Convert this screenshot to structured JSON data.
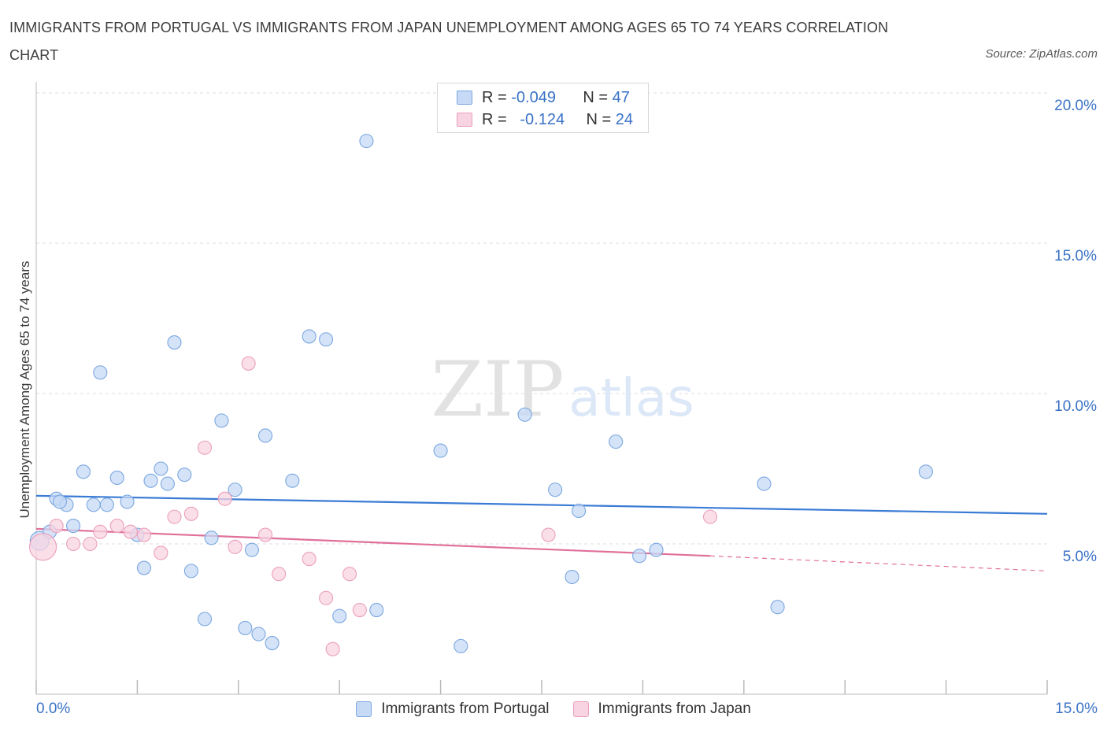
{
  "chart_data": {
    "type": "scatter",
    "title": "IMMIGRANTS FROM PORTUGAL VS IMMIGRANTS FROM JAPAN UNEMPLOYMENT AMONG AGES 65 TO 74 YEARS CORRELATION CHART",
    "source": "Source: ZipAtlas.com",
    "ylabel": "Unemployment Among Ages 65 to 74 years",
    "xlabel": "",
    "xlim": [
      0,
      15
    ],
    "ylim": [
      0,
      20
    ],
    "x_tick_labels": [
      "0.0%",
      "15.0%"
    ],
    "y_ticks": [
      {
        "value": 5,
        "label": "5.0%"
      },
      {
        "value": 10,
        "label": "10.0%"
      },
      {
        "value": 15,
        "label": "15.0%"
      },
      {
        "value": 20,
        "label": "20.0%"
      }
    ],
    "watermark": {
      "zip": "ZIP",
      "atlas": "atlas"
    },
    "legend": {
      "r_label": "R =",
      "n_label": "N =",
      "entries": [
        {
          "name": "Immigrants from Portugal",
          "r": "-0.049",
          "n": "47"
        },
        {
          "name": "Immigrants from Japan",
          "r": "-0.124",
          "n": "24"
        }
      ]
    },
    "series": [
      {
        "name": "Immigrants from Portugal",
        "color": "#7ba7e0",
        "fill": "#c6daf5",
        "line_color": "#3a7bd5",
        "trend": {
          "x0": 0.0,
          "y0": 6.6,
          "x1": 15.0,
          "y1": 6.0
        },
        "points": [
          [
            0.05,
            5.1
          ],
          [
            0.2,
            5.4
          ],
          [
            0.3,
            6.5
          ],
          [
            0.45,
            6.3
          ],
          [
            0.55,
            5.6
          ],
          [
            0.7,
            7.4
          ],
          [
            0.85,
            6.3
          ],
          [
            0.95,
            10.7
          ],
          [
            1.05,
            6.3
          ],
          [
            1.2,
            7.2
          ],
          [
            1.35,
            6.4
          ],
          [
            1.5,
            5.3
          ],
          [
            1.6,
            4.2
          ],
          [
            1.7,
            7.1
          ],
          [
            1.85,
            7.5
          ],
          [
            1.95,
            7.0
          ],
          [
            2.05,
            11.7
          ],
          [
            2.2,
            7.3
          ],
          [
            2.3,
            4.1
          ],
          [
            2.5,
            2.5
          ],
          [
            2.6,
            5.2
          ],
          [
            2.75,
            9.1
          ],
          [
            2.95,
            6.8
          ],
          [
            3.1,
            2.2
          ],
          [
            3.2,
            4.8
          ],
          [
            3.3,
            2.0
          ],
          [
            3.4,
            8.6
          ],
          [
            3.5,
            1.7
          ],
          [
            3.8,
            7.1
          ],
          [
            4.05,
            11.9
          ],
          [
            4.3,
            11.8
          ],
          [
            4.5,
            2.6
          ],
          [
            4.9,
            18.4
          ],
          [
            5.05,
            2.8
          ],
          [
            6.0,
            8.1
          ],
          [
            6.3,
            1.6
          ],
          [
            7.25,
            9.3
          ],
          [
            7.7,
            6.8
          ],
          [
            7.95,
            3.9
          ],
          [
            8.05,
            6.1
          ],
          [
            8.6,
            8.4
          ],
          [
            8.95,
            4.6
          ],
          [
            9.2,
            4.8
          ],
          [
            10.8,
            7.0
          ],
          [
            11.0,
            2.9
          ],
          [
            13.2,
            7.4
          ],
          [
            0.35,
            6.4
          ]
        ]
      },
      {
        "name": "Immigrants from Japan",
        "color": "#eb9fbc",
        "fill": "#f8d4e2",
        "line_color": "#e0709a",
        "trend": {
          "x0": 0.0,
          "y0": 5.5,
          "x1": 10.0,
          "y1": 4.6
        },
        "trend_dashed_to": {
          "x": 15.0,
          "y": 4.1
        },
        "points": [
          [
            0.1,
            4.9
          ],
          [
            0.3,
            5.6
          ],
          [
            0.55,
            5.0
          ],
          [
            0.8,
            5.0
          ],
          [
            0.95,
            5.4
          ],
          [
            1.2,
            5.6
          ],
          [
            1.4,
            5.4
          ],
          [
            1.6,
            5.3
          ],
          [
            1.85,
            4.7
          ],
          [
            2.05,
            5.9
          ],
          [
            2.3,
            6.0
          ],
          [
            2.5,
            8.2
          ],
          [
            2.8,
            6.5
          ],
          [
            2.95,
            4.9
          ],
          [
            3.15,
            11.0
          ],
          [
            3.4,
            5.3
          ],
          [
            3.6,
            4.0
          ],
          [
            4.05,
            4.5
          ],
          [
            4.3,
            3.2
          ],
          [
            4.4,
            1.5
          ],
          [
            4.65,
            4.0
          ],
          [
            4.8,
            2.8
          ],
          [
            7.6,
            5.3
          ],
          [
            10.0,
            5.9
          ]
        ]
      }
    ]
  }
}
